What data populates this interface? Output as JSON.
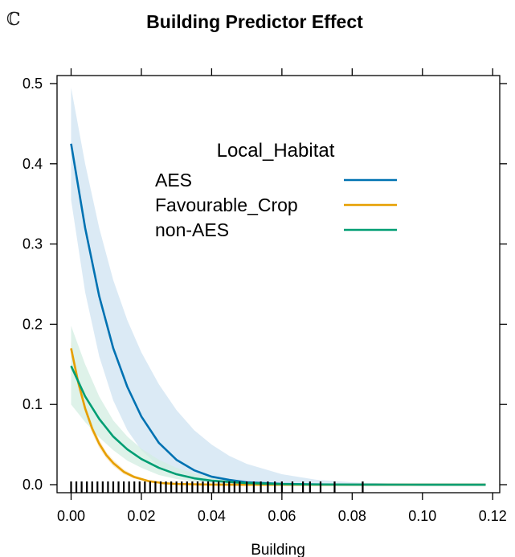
{
  "panel_label": "ℂ",
  "chart_data": {
    "type": "line",
    "title": "Building Predictor Effect",
    "xlabel": "Building",
    "ylabel": "",
    "xlim": [
      -0.004,
      0.122
    ],
    "ylim": [
      -0.01,
      0.51
    ],
    "xticks": [
      0.0,
      0.02,
      0.04,
      0.06,
      0.08,
      0.1,
      0.12
    ],
    "xtick_labels": [
      "0.00",
      "0.02",
      "0.04",
      "0.06",
      "0.08",
      "0.10",
      "0.12"
    ],
    "yticks": [
      0.0,
      0.1,
      0.2,
      0.3,
      0.4,
      0.5
    ],
    "ytick_labels": [
      "0.0",
      "0.1",
      "0.2",
      "0.3",
      "0.4",
      "0.5"
    ],
    "grid": false,
    "legend": {
      "title": "Local_Habitat",
      "placement": "inside-top-center",
      "entries": [
        "AES",
        "Favourable_Crop",
        "non-AES"
      ]
    },
    "series": [
      {
        "name": "AES",
        "color": "#0072B2",
        "band_color": "#cfe3f2",
        "x": [
          0.0,
          0.004,
          0.008,
          0.012,
          0.016,
          0.02,
          0.025,
          0.03,
          0.035,
          0.04,
          0.045,
          0.05,
          0.06,
          0.07,
          0.08,
          0.09,
          0.1,
          0.11,
          0.118
        ],
        "y": [
          0.425,
          0.32,
          0.235,
          0.17,
          0.122,
          0.085,
          0.052,
          0.031,
          0.018,
          0.01,
          0.006,
          0.003,
          0.001,
          0.0003,
          0.0001,
          3e-05,
          1e-05,
          0.0,
          0.0
        ],
        "lower": [
          0.355,
          0.24,
          0.16,
          0.105,
          0.068,
          0.043,
          0.023,
          0.012,
          0.006,
          0.003,
          0.0015,
          0.0007,
          0.0001,
          0.0,
          0.0,
          0.0,
          0.0,
          0.0,
          0.0
        ],
        "upper": [
          0.495,
          0.4,
          0.32,
          0.255,
          0.205,
          0.165,
          0.125,
          0.093,
          0.068,
          0.05,
          0.036,
          0.026,
          0.013,
          0.006,
          0.003,
          0.0015,
          0.0007,
          0.0003,
          0.0002
        ]
      },
      {
        "name": "Favourable_Crop",
        "color": "#E69F00",
        "band_color": "#fbe6bf",
        "x": [
          0.0,
          0.002,
          0.004,
          0.006,
          0.008,
          0.01,
          0.012,
          0.015,
          0.018,
          0.022,
          0.026,
          0.03,
          0.04,
          0.05,
          0.06,
          0.08,
          0.1,
          0.118
        ],
        "y": [
          0.17,
          0.128,
          0.095,
          0.07,
          0.051,
          0.037,
          0.027,
          0.016,
          0.0095,
          0.0045,
          0.002,
          0.0009,
          0.0001,
          0.0,
          0.0,
          0.0,
          0.0,
          0.0
        ],
        "lower": [
          0.16,
          0.12,
          0.088,
          0.064,
          0.046,
          0.033,
          0.023,
          0.013,
          0.0075,
          0.0033,
          0.0014,
          0.0006,
          0.0,
          0.0,
          0.0,
          0.0,
          0.0,
          0.0
        ],
        "upper": [
          0.18,
          0.136,
          0.102,
          0.076,
          0.056,
          0.041,
          0.031,
          0.019,
          0.0115,
          0.0057,
          0.0027,
          0.0013,
          0.0002,
          0.0,
          0.0,
          0.0,
          0.0,
          0.0
        ]
      },
      {
        "name": "non-AES",
        "color": "#009E73",
        "band_color": "#d3ede1",
        "x": [
          0.0,
          0.004,
          0.008,
          0.012,
          0.016,
          0.02,
          0.025,
          0.03,
          0.035,
          0.04,
          0.05,
          0.06,
          0.07,
          0.08,
          0.1,
          0.118
        ],
        "y": [
          0.148,
          0.11,
          0.082,
          0.06,
          0.044,
          0.032,
          0.021,
          0.013,
          0.008,
          0.005,
          0.002,
          0.0007,
          0.0002,
          0.0001,
          0.0,
          0.0
        ],
        "lower": [
          0.1,
          0.078,
          0.059,
          0.043,
          0.03,
          0.021,
          0.012,
          0.007,
          0.004,
          0.002,
          0.0006,
          0.0002,
          0.0,
          0.0,
          0.0,
          0.0
        ],
        "upper": [
          0.198,
          0.15,
          0.11,
          0.08,
          0.06,
          0.045,
          0.031,
          0.021,
          0.014,
          0.009,
          0.004,
          0.0017,
          0.0007,
          0.0003,
          0.0001,
          0.0
        ]
      }
    ],
    "rug": [
      0.0,
      0.0015,
      0.003,
      0.0045,
      0.006,
      0.0075,
      0.009,
      0.0105,
      0.012,
      0.0135,
      0.015,
      0.0165,
      0.018,
      0.0195,
      0.021,
      0.0225,
      0.024,
      0.0255,
      0.027,
      0.0285,
      0.03,
      0.0315,
      0.033,
      0.0345,
      0.036,
      0.0375,
      0.039,
      0.0405,
      0.042,
      0.0435,
      0.045,
      0.0465,
      0.048,
      0.05,
      0.052,
      0.054,
      0.056,
      0.058,
      0.06,
      0.063,
      0.066,
      0.068,
      0.071,
      0.075,
      0.083
    ]
  }
}
